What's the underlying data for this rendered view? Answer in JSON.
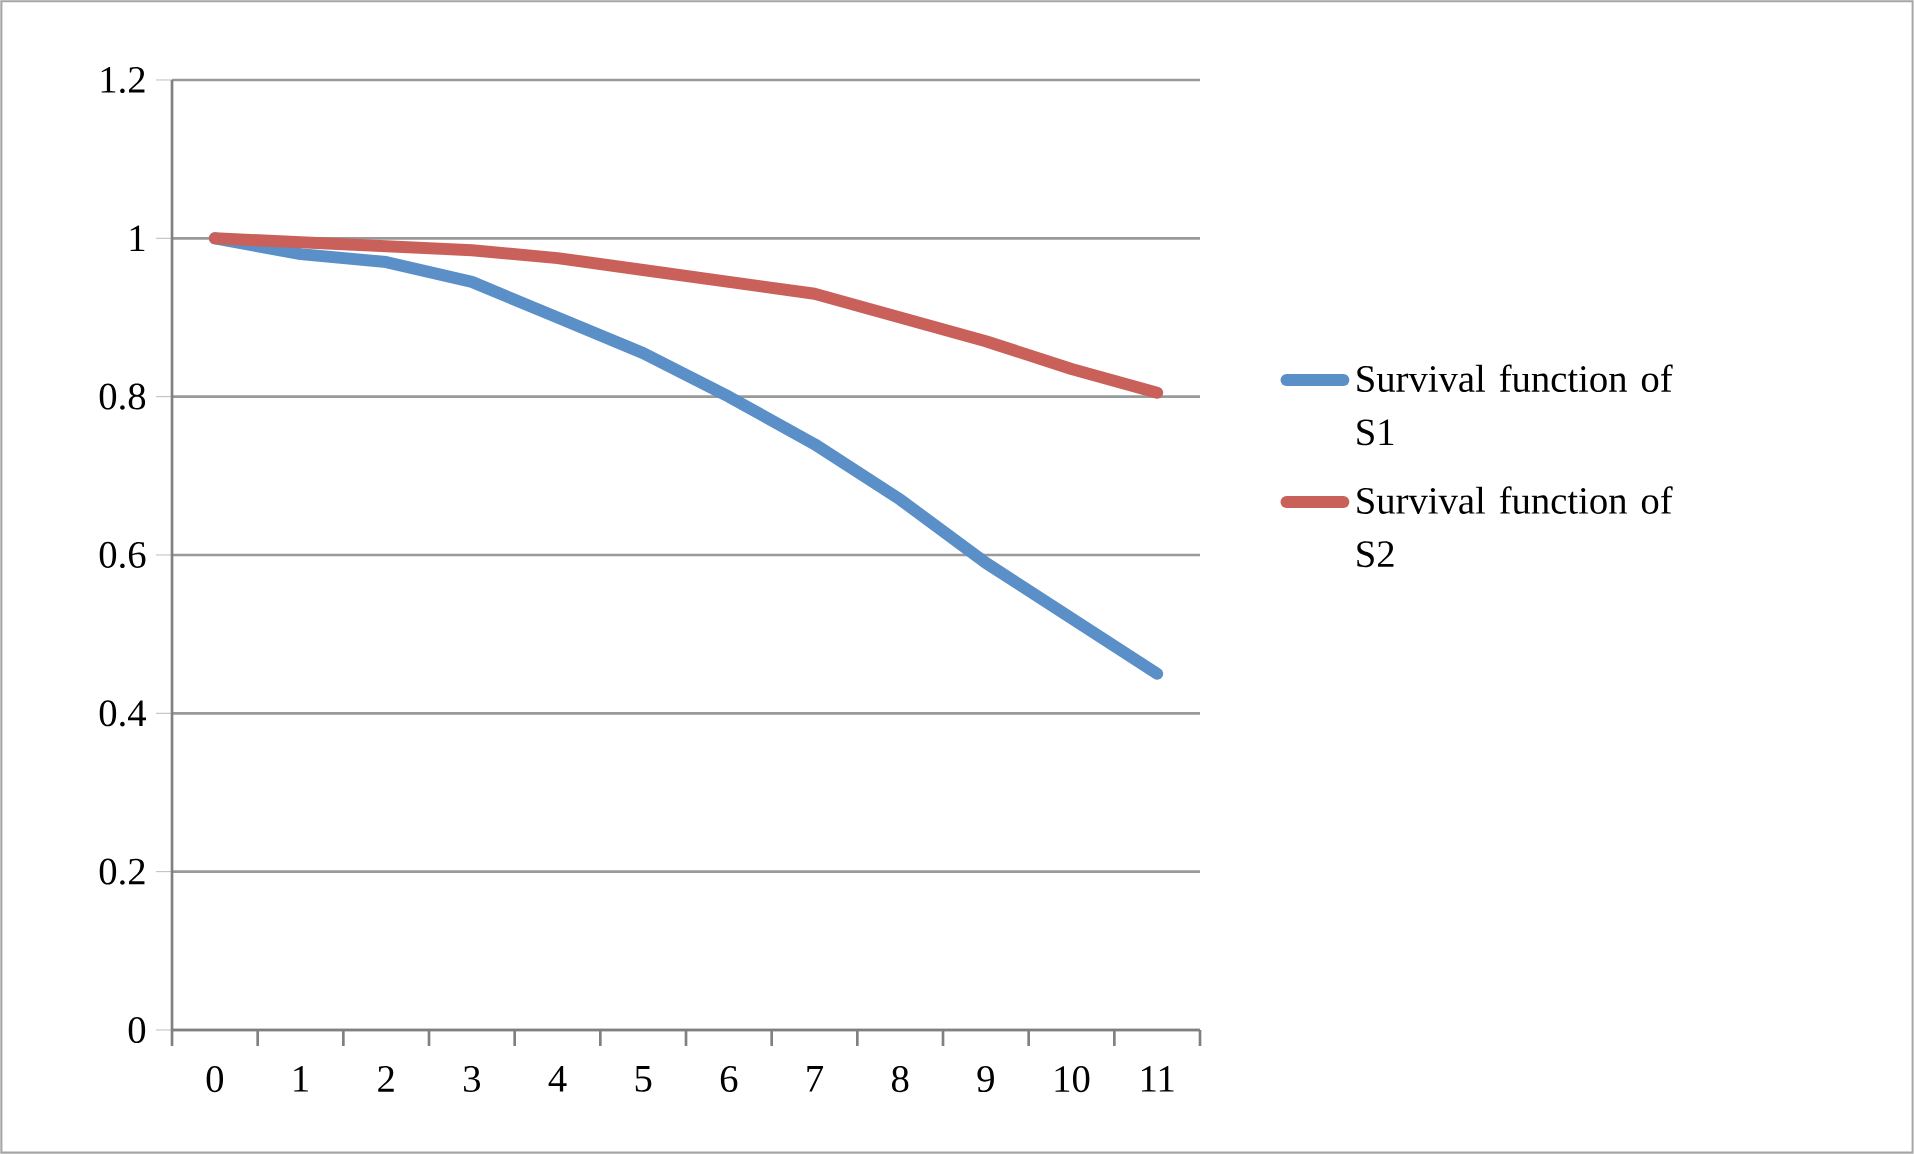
{
  "chart_data": {
    "type": "line",
    "categories": [
      "0",
      "1",
      "2",
      "3",
      "4",
      "5",
      "6",
      "7",
      "8",
      "9",
      "10",
      "11"
    ],
    "series": [
      {
        "name": "Survival function of S1",
        "color": "#5b8fc7",
        "values": [
          1.0,
          0.98,
          0.97,
          0.945,
          0.9,
          0.855,
          0.8,
          0.74,
          0.67,
          0.59,
          0.52,
          0.45
        ]
      },
      {
        "name": "Survival function of S2",
        "color": "#c9605a",
        "values": [
          1.0,
          0.995,
          0.99,
          0.985,
          0.975,
          0.96,
          0.945,
          0.93,
          0.9,
          0.87,
          0.835,
          0.805
        ]
      }
    ],
    "ylim": [
      0,
      1.2
    ],
    "yticks": [
      0,
      0.2,
      0.4,
      0.6,
      0.8,
      1,
      1.2
    ],
    "grid": "y",
    "legend": "right",
    "marker": "none",
    "line_style": "solid"
  }
}
